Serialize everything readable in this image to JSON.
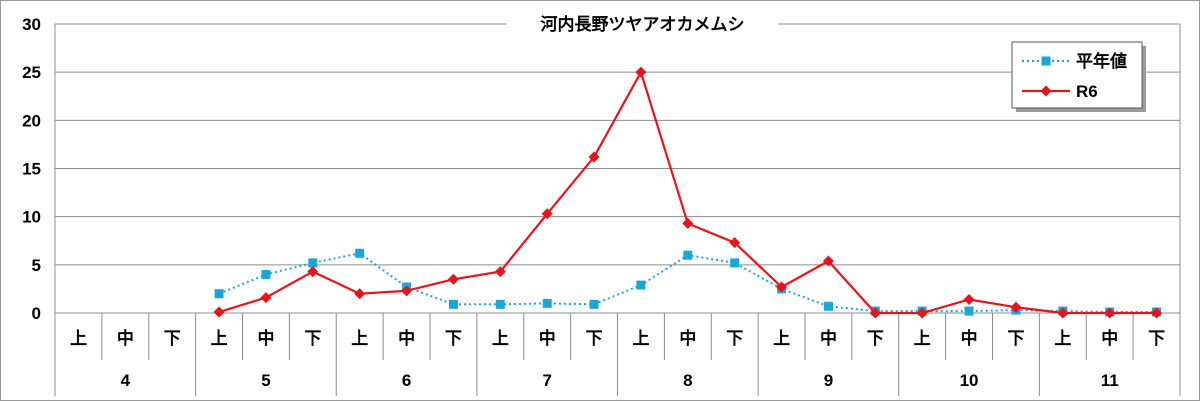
{
  "chart_data": {
    "type": "line",
    "title": "河内長野ツヤアオカメムシ",
    "categories": [
      "上",
      "中",
      "下",
      "上",
      "中",
      "下",
      "上",
      "中",
      "下",
      "上",
      "中",
      "下",
      "上",
      "中",
      "下",
      "上",
      "中",
      "下",
      "上",
      "中",
      "下",
      "上",
      "中",
      "下"
    ],
    "months": [
      "4",
      "5",
      "6",
      "7",
      "8",
      "9",
      "10",
      "11"
    ],
    "ylim": [
      0,
      30
    ],
    "yticks": [
      0,
      5,
      10,
      15,
      20,
      25,
      30
    ],
    "grid": true,
    "legend_position": "top-right",
    "series": [
      {
        "name": "平年値",
        "color": "#1aa6d8",
        "style": "dotted",
        "marker": "square",
        "values": [
          null,
          null,
          null,
          2.0,
          4.0,
          5.2,
          6.2,
          2.7,
          0.9,
          0.9,
          1.0,
          0.9,
          2.9,
          6.0,
          5.2,
          2.5,
          0.7,
          0.2,
          0.2,
          0.2,
          0.3,
          0.2,
          0.1,
          0.1
        ]
      },
      {
        "name": "R6",
        "color": "#e8141b",
        "style": "solid",
        "marker": "diamond",
        "values": [
          null,
          null,
          null,
          0.1,
          1.6,
          4.3,
          2.0,
          2.3,
          3.5,
          4.3,
          10.3,
          16.2,
          25.0,
          9.3,
          7.3,
          2.7,
          5.4,
          0.0,
          0.0,
          1.4,
          0.6,
          0.0,
          0.0,
          0.0
        ]
      }
    ]
  }
}
